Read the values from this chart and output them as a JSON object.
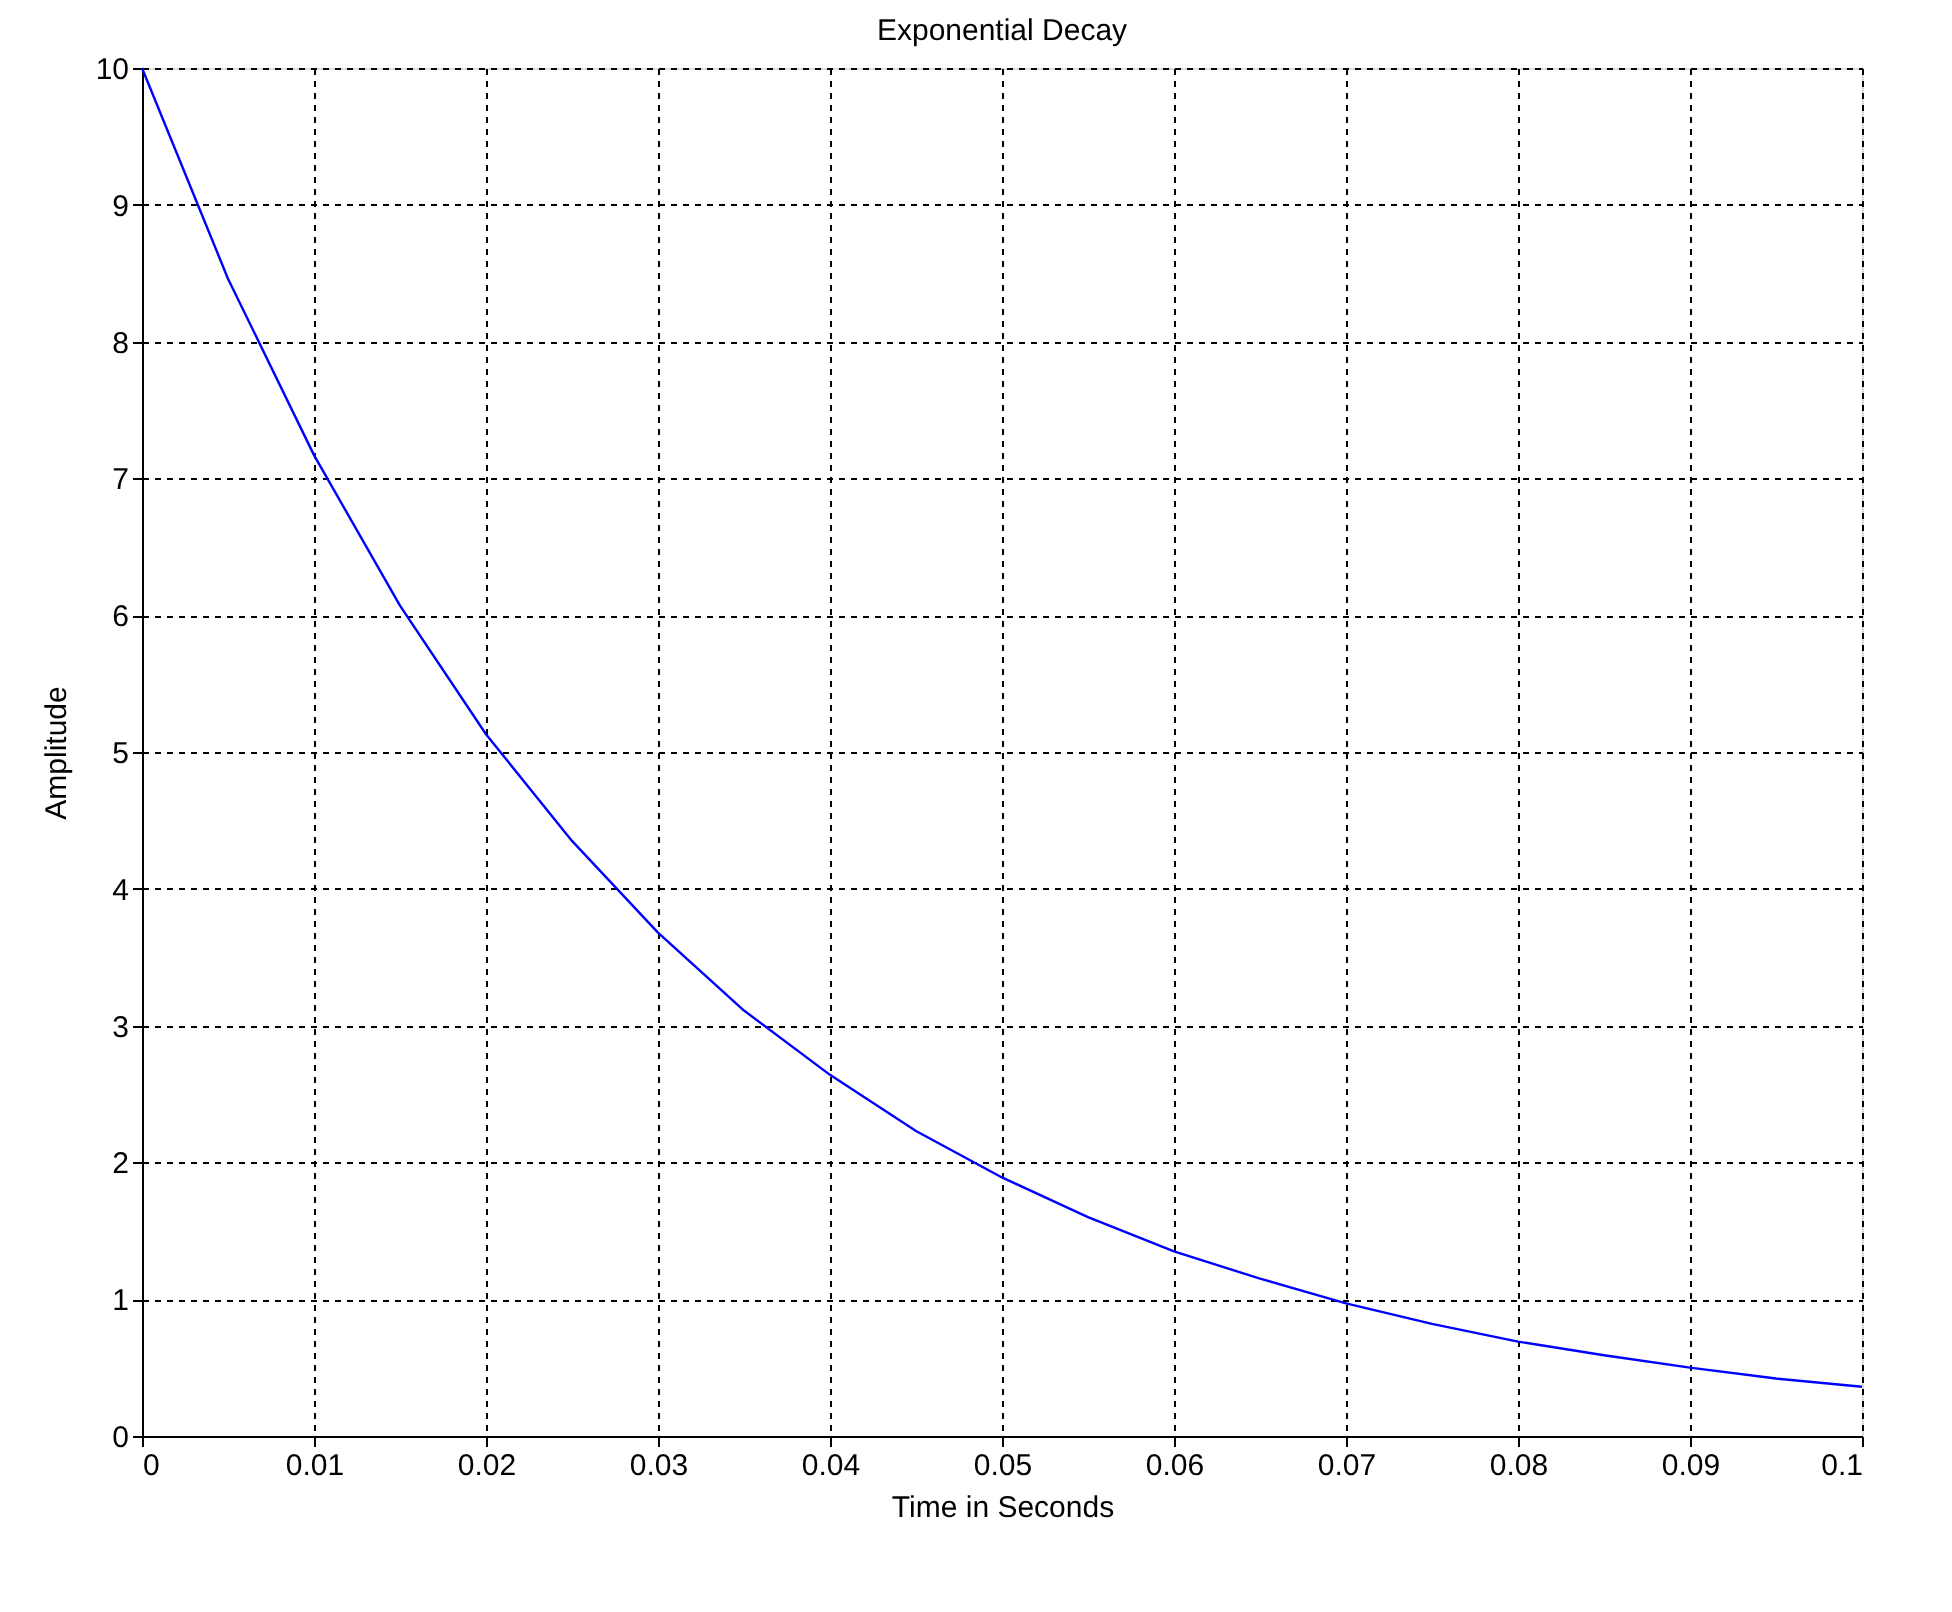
{
  "chart_data": {
    "type": "line",
    "title": "Exponential Decay",
    "xlabel": "Time in Seconds",
    "ylabel": "Amplitude",
    "x": [
      0,
      0.005,
      0.01,
      0.015,
      0.02,
      0.025,
      0.03,
      0.035,
      0.04,
      0.045,
      0.05,
      0.055,
      0.06,
      0.065,
      0.07,
      0.075,
      0.08,
      0.085,
      0.09,
      0.095,
      0.1
    ],
    "series": [
      {
        "color": "#0000ff",
        "values": [
          10,
          8.46,
          7.17,
          6.07,
          5.13,
          4.35,
          3.68,
          3.11,
          2.64,
          2.23,
          1.89,
          1.6,
          1.35,
          1.15,
          0.97,
          0.82,
          0.69,
          0.59,
          0.5,
          0.42,
          0.36
        ]
      }
    ],
    "xlim": [
      0,
      0.1
    ],
    "xticks": [
      0,
      0.01,
      0.02,
      0.03,
      0.04,
      0.05,
      0.06,
      0.07,
      0.08,
      0.09,
      0.1
    ],
    "ylim": [
      0,
      10
    ],
    "yticks": [
      0,
      1,
      2,
      3,
      4,
      5,
      6,
      7,
      8,
      9,
      10
    ],
    "grid": true,
    "marker": "none",
    "line_style": "solid"
  }
}
